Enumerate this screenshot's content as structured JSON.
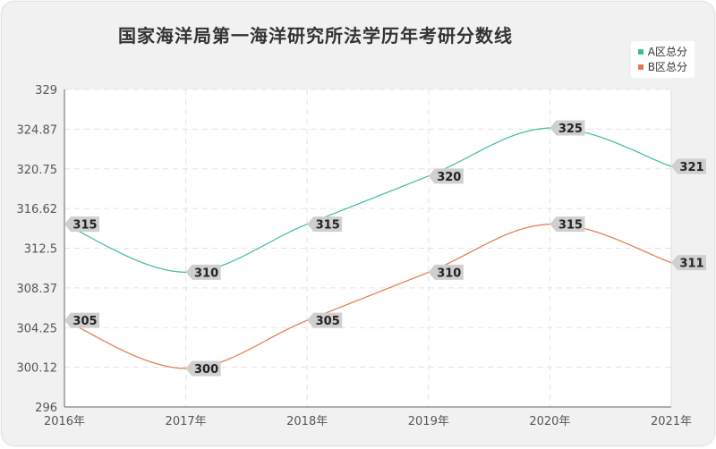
{
  "colors": {
    "background": "#f1f1f1",
    "plot_background": "#ffffff",
    "series_a": "#3dbb9a",
    "series_b": "#e07a4a",
    "label_box": "#cfcfcf"
  },
  "chart_data": {
    "type": "line",
    "title": "国家海洋局第一海洋研究所法学历年考研分数线",
    "xlabel": "",
    "ylabel": "",
    "categories": [
      "2016年",
      "2017年",
      "2018年",
      "2019年",
      "2020年",
      "2021年"
    ],
    "y_ticks": [
      "296",
      "300.12",
      "304.25",
      "308.37",
      "312.5",
      "316.62",
      "320.75",
      "324.87",
      "329"
    ],
    "ylim": [
      296,
      329
    ],
    "grid": true,
    "legend_position": "top-right",
    "smooth": true,
    "series": [
      {
        "name": "A区总分",
        "values": [
          315,
          310,
          315,
          320,
          325,
          321
        ]
      },
      {
        "name": "B区总分",
        "values": [
          305,
          300,
          305,
          310,
          315,
          311
        ]
      }
    ]
  }
}
